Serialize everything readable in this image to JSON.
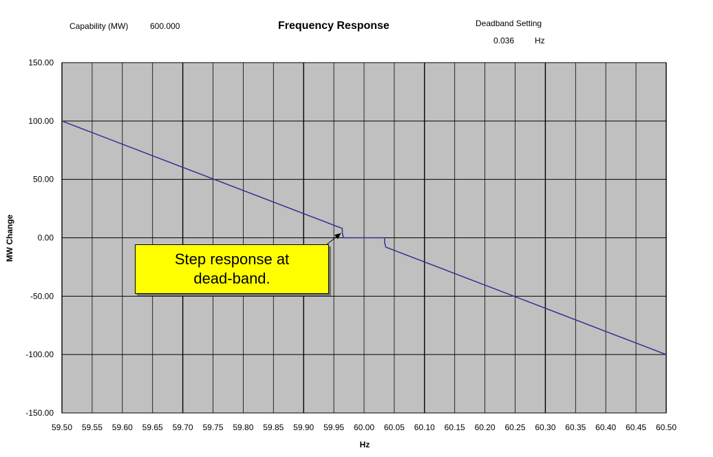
{
  "header": {
    "capability_label": "Capability (MW)",
    "capability_value": "600.000",
    "deadband_label": "Deadband Setting",
    "deadband_value": "0.036",
    "deadband_unit": "Hz"
  },
  "callout": {
    "line1": "Step response at",
    "line2": "dead-band."
  },
  "chart_data": {
    "type": "line",
    "title": "Frequency Response",
    "xlabel": "Hz",
    "ylabel": "MW Change",
    "xlim": [
      59.5,
      60.5
    ],
    "ylim": [
      -150,
      150
    ],
    "xticks": [
      "59.50",
      "59.55",
      "59.60",
      "59.65",
      "59.70",
      "59.75",
      "59.80",
      "59.85",
      "59.90",
      "59.95",
      "60.00",
      "60.05",
      "60.10",
      "60.15",
      "60.20",
      "60.25",
      "60.30",
      "60.35",
      "60.40",
      "60.45",
      "60.50"
    ],
    "yticks": [
      "150.00",
      "100.00",
      "50.00",
      "0.00",
      "-50.00",
      "-100.00",
      "-150.00"
    ],
    "grid": true,
    "series": [
      {
        "color": "#2e3192",
        "x": [
          59.5,
          59.964,
          59.964,
          59.966,
          60.034,
          60.034,
          60.036,
          60.5
        ],
        "y": [
          100.0,
          8.0,
          4.0,
          0.0,
          0.0,
          -4.0,
          -8.0,
          -100.0
        ]
      }
    ],
    "colors": {
      "plot_background": "#c0c0c0",
      "gridline": "#000000",
      "line": "#2e3192",
      "callout": "#ffff00"
    }
  }
}
